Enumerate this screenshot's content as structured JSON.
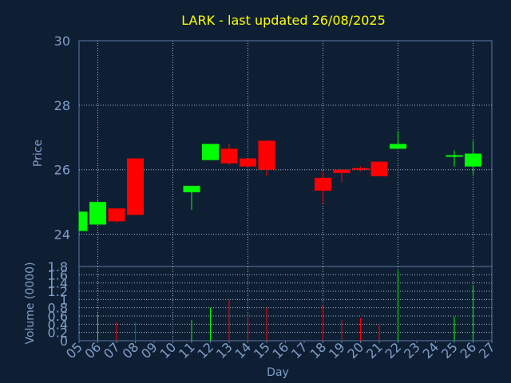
{
  "chart_data": {
    "type": "candlestick",
    "title": "LARK - last updated 26/08/2025",
    "xlabel": "Day",
    "colors": {
      "background": "#0f1f33",
      "frame": "#5a7aa5",
      "grid": "#a7b7cc",
      "text": "#7f9fc8",
      "title": "#ffff00",
      "up": "#00ff00",
      "down": "#ff0000"
    },
    "x_ticks": [
      "05",
      "06",
      "07",
      "08",
      "09",
      "10",
      "11",
      "12",
      "13",
      "14",
      "15",
      "16",
      "17",
      "18",
      "19",
      "20",
      "21",
      "22",
      "23",
      "24",
      "25",
      "26",
      "27"
    ],
    "price_panel": {
      "ylabel": "Price",
      "ylim": [
        23,
        30
      ],
      "yticks": [
        24,
        26,
        28,
        30
      ],
      "grid": true
    },
    "volume_panel": {
      "ylabel": "Volume (0000)",
      "ylim": [
        0,
        1.8
      ],
      "yticks": [
        "0",
        "0.2",
        "0.4",
        "0.6",
        "0.8",
        "1",
        "1.2",
        "1.4",
        "1.6",
        "1.8"
      ],
      "grid": true
    },
    "candles": [
      {
        "day": "05",
        "open": 24.1,
        "high": 24.7,
        "low": 24.1,
        "close": 24.7
      },
      {
        "day": "06",
        "open": 24.3,
        "high": 25.05,
        "low": 24.3,
        "close": 25.0
      },
      {
        "day": "07",
        "open": 24.8,
        "high": 24.8,
        "low": 24.35,
        "close": 24.4
      },
      {
        "day": "08",
        "open": 26.35,
        "high": 26.35,
        "low": 24.6,
        "close": 24.6
      },
      {
        "day": "11",
        "open": 25.3,
        "high": 25.5,
        "low": 24.75,
        "close": 25.5
      },
      {
        "day": "12",
        "open": 26.3,
        "high": 26.8,
        "low": 26.3,
        "close": 26.8
      },
      {
        "day": "13",
        "open": 26.65,
        "high": 26.8,
        "low": 26.15,
        "close": 26.2
      },
      {
        "day": "14",
        "open": 26.35,
        "high": 26.35,
        "low": 26.05,
        "close": 26.1
      },
      {
        "day": "15",
        "open": 26.9,
        "high": 26.9,
        "low": 25.8,
        "close": 26.0
      },
      {
        "day": "18",
        "open": 25.75,
        "high": 25.95,
        "low": 24.95,
        "close": 25.35
      },
      {
        "day": "19",
        "open": 26.0,
        "high": 26.0,
        "low": 25.6,
        "close": 25.9
      },
      {
        "day": "20",
        "open": 26.05,
        "high": 26.1,
        "low": 25.95,
        "close": 26.0
      },
      {
        "day": "21",
        "open": 26.25,
        "high": 26.25,
        "low": 25.8,
        "close": 25.8
      },
      {
        "day": "22",
        "open": 26.65,
        "high": 27.2,
        "low": 26.65,
        "close": 26.8
      },
      {
        "day": "25",
        "open": 26.4,
        "high": 26.6,
        "low": 26.1,
        "close": 26.45
      },
      {
        "day": "26",
        "open": 26.1,
        "high": 26.9,
        "low": 25.85,
        "close": 26.5
      }
    ],
    "volume": [
      {
        "day": "06",
        "value": 0.65,
        "direction": "up"
      },
      {
        "day": "07",
        "value": 0.45,
        "direction": "down"
      },
      {
        "day": "08",
        "value": 0.45,
        "direction": "down"
      },
      {
        "day": "11",
        "value": 0.5,
        "direction": "up"
      },
      {
        "day": "12",
        "value": 0.8,
        "direction": "up"
      },
      {
        "day": "13",
        "value": 1.0,
        "direction": "down"
      },
      {
        "day": "14",
        "value": 0.58,
        "direction": "down"
      },
      {
        "day": "15",
        "value": 0.8,
        "direction": "down"
      },
      {
        "day": "18",
        "value": 0.85,
        "direction": "down"
      },
      {
        "day": "19",
        "value": 0.5,
        "direction": "down"
      },
      {
        "day": "20",
        "value": 0.55,
        "direction": "down"
      },
      {
        "day": "21",
        "value": 0.4,
        "direction": "down"
      },
      {
        "day": "22",
        "value": 1.7,
        "direction": "up"
      },
      {
        "day": "25",
        "value": 0.58,
        "direction": "up"
      },
      {
        "day": "26",
        "value": 1.35,
        "direction": "up"
      }
    ]
  }
}
